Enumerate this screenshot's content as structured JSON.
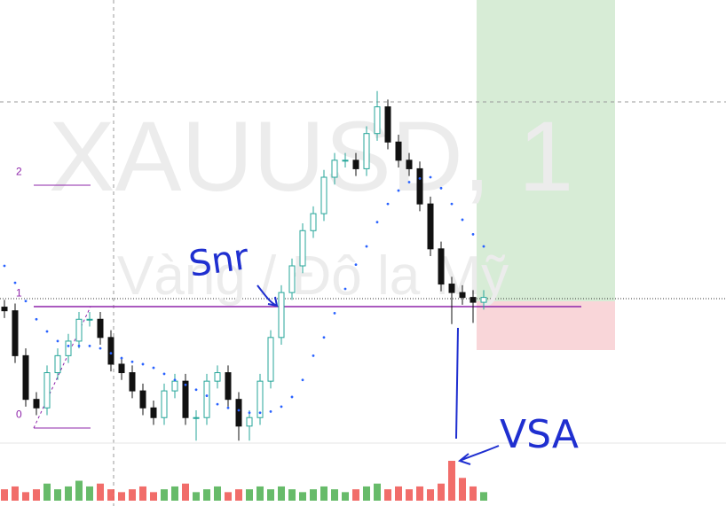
{
  "chart_data": {
    "type": "candlestick",
    "watermark_title": "XAUUSD, 1",
    "watermark_subtitle": "Vàng / Đô la Mỹ",
    "annotations": [
      "Snr",
      "VSA"
    ],
    "ylim": [
      -0.12,
      3.53
    ],
    "yticks": [
      0,
      1,
      2
    ],
    "up_color": "#26a69a",
    "down_color": "#111111",
    "ma_color": "#2962ff",
    "volume_colors": {
      "up": "#4caf50",
      "down": "#ef5350"
    },
    "open": [
      1.0,
      0.97,
      0.6,
      0.24,
      0.17,
      0.46,
      0.6,
      0.72,
      0.9,
      0.9,
      0.75,
      0.53,
      0.46,
      0.31,
      0.17,
      0.09,
      0.31,
      0.39,
      0.09,
      0.09,
      0.39,
      0.46,
      0.24,
      0.02,
      0.09,
      0.39,
      0.75,
      1.12,
      1.34,
      1.63,
      1.77,
      2.07,
      2.21,
      2.21,
      2.14,
      2.43,
      2.65,
      2.36,
      2.21,
      2.14,
      1.85,
      1.48,
      1.19,
      1.12,
      1.08,
      1.04
    ],
    "high": [
      1.06,
      1.03,
      0.66,
      0.3,
      0.52,
      0.66,
      0.78,
      0.96,
      0.96,
      0.96,
      0.81,
      0.59,
      0.52,
      0.37,
      0.23,
      0.37,
      0.45,
      0.45,
      0.15,
      0.45,
      0.52,
      0.52,
      0.3,
      0.15,
      0.45,
      0.81,
      1.18,
      1.4,
      1.69,
      1.83,
      2.13,
      2.27,
      2.27,
      2.27,
      2.49,
      2.78,
      2.71,
      2.42,
      2.27,
      2.2,
      1.91,
      1.54,
      1.25,
      1.18,
      1.14,
      1.14
    ],
    "low": [
      0.91,
      0.54,
      0.18,
      0.11,
      0.11,
      0.4,
      0.54,
      0.66,
      0.84,
      0.69,
      0.47,
      0.4,
      0.25,
      0.11,
      0.03,
      0.03,
      0.25,
      0.03,
      -0.1,
      0.03,
      0.33,
      0.18,
      -0.1,
      -0.1,
      0.03,
      0.33,
      0.69,
      1.06,
      1.28,
      1.57,
      1.71,
      2.01,
      2.15,
      2.08,
      2.08,
      2.37,
      2.3,
      2.15,
      2.08,
      1.79,
      1.42,
      1.13,
      0.86,
      1.02,
      0.87,
      0.98
    ],
    "close": [
      0.97,
      0.6,
      0.24,
      0.17,
      0.46,
      0.6,
      0.72,
      0.9,
      0.9,
      0.75,
      0.53,
      0.46,
      0.31,
      0.17,
      0.09,
      0.31,
      0.39,
      0.09,
      0.09,
      0.39,
      0.46,
      0.24,
      0.02,
      0.09,
      0.39,
      0.75,
      1.12,
      1.34,
      1.63,
      1.77,
      2.07,
      2.21,
      2.21,
      2.14,
      2.43,
      2.65,
      2.36,
      2.21,
      2.14,
      1.85,
      1.48,
      1.19,
      1.12,
      1.08,
      1.04,
      1.08
    ],
    "ma": [
      1.34,
      1.2,
      1.05,
      0.9,
      0.8,
      0.72,
      0.68,
      0.68,
      0.68,
      0.66,
      0.62,
      0.58,
      0.55,
      0.53,
      0.5,
      0.45,
      0.4,
      0.36,
      0.32,
      0.27,
      0.2,
      0.17,
      0.15,
      0.13,
      0.13,
      0.14,
      0.18,
      0.26,
      0.4,
      0.6,
      0.75,
      0.95,
      1.15,
      1.35,
      1.5,
      1.7,
      1.85,
      1.96,
      2.03,
      2.06,
      2.07,
      1.98,
      1.85,
      1.72,
      1.6,
      1.5
    ],
    "volume": [
      4,
      5,
      3,
      4,
      6,
      4,
      5,
      7,
      5,
      6,
      4,
      3,
      4,
      5,
      3,
      4,
      5,
      6,
      3,
      4,
      5,
      3,
      4,
      4,
      5,
      4,
      5,
      4,
      3,
      4,
      5,
      4,
      3,
      4,
      5,
      6,
      4,
      5,
      4,
      5,
      4,
      6,
      14,
      8,
      5,
      3
    ]
  }
}
